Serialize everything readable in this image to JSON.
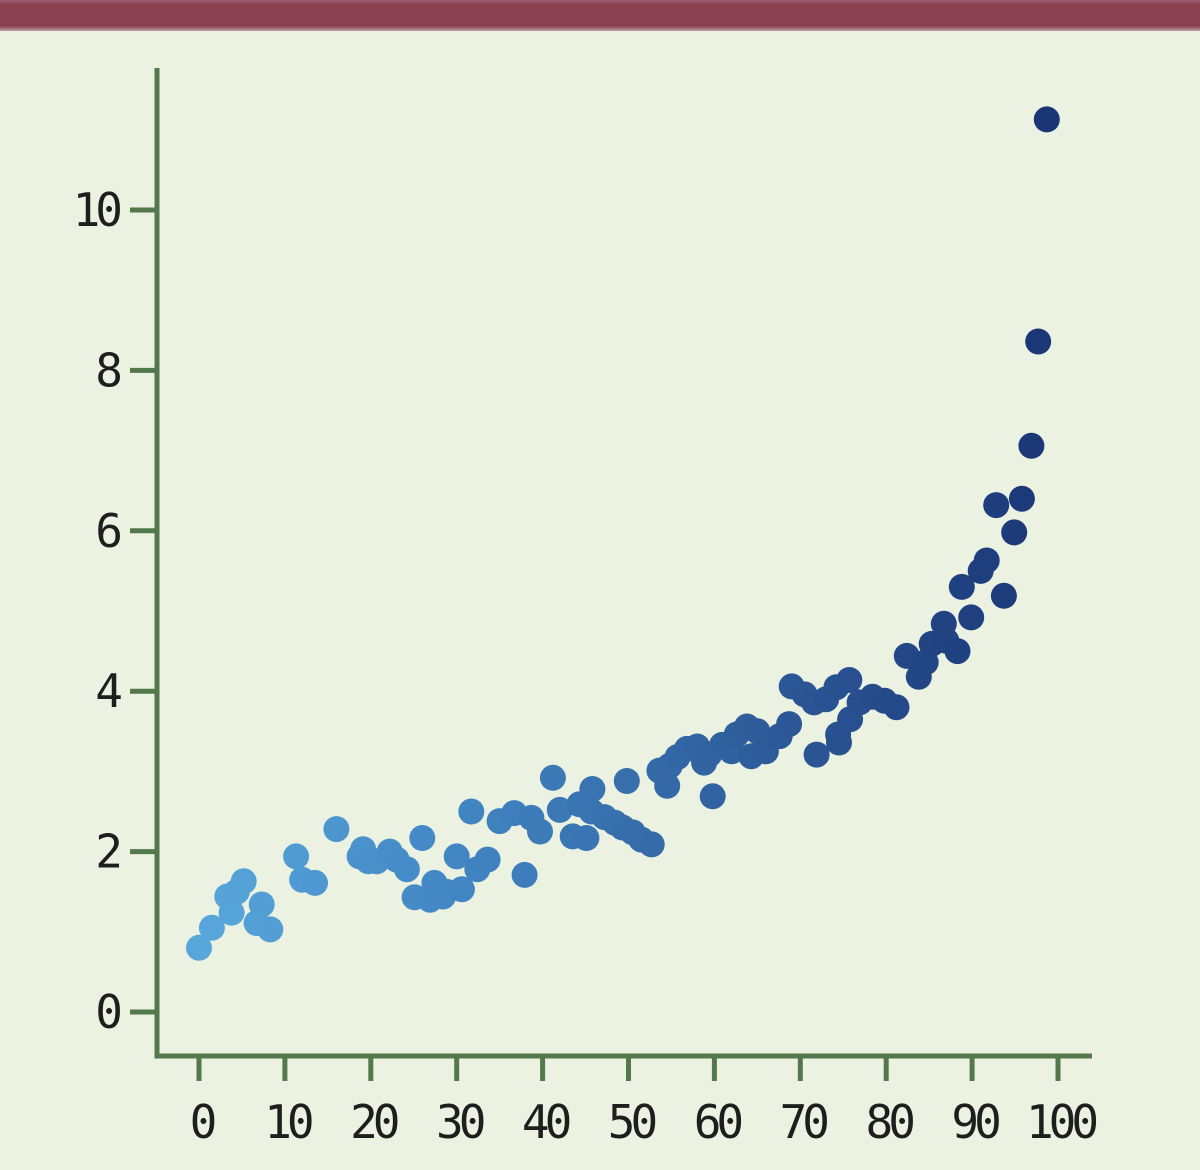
{
  "page": {
    "background_color": "#ecf2e2",
    "top_bar_color": "#8b4051"
  },
  "chart_data": {
    "type": "scatter",
    "title": "",
    "xlabel": "",
    "ylabel": "",
    "xlim": [
      -5,
      104
    ],
    "ylim": [
      -0.55,
      11.8
    ],
    "grid": false,
    "legend": null,
    "x_tick_labels": [
      "0",
      "10",
      "20",
      "30",
      "40",
      "50",
      "60",
      "70",
      "80",
      "90",
      "100"
    ],
    "x_tick_values": [
      0,
      10,
      20,
      30,
      40,
      50,
      60,
      70,
      80,
      90,
      100
    ],
    "y_tick_labels": [
      "0",
      "2",
      "4",
      "6",
      "8",
      "10"
    ],
    "y_tick_values": [
      0,
      2,
      4,
      6,
      8,
      10
    ],
    "axis_color": "#52784b",
    "tick_label_color": "#1e1e1e",
    "point_radius_px": 13,
    "point_color_stops": [
      {
        "t": 0.0,
        "c": "#58a7db"
      },
      {
        "t": 0.3,
        "c": "#4286c4"
      },
      {
        "t": 0.55,
        "c": "#3468a6"
      },
      {
        "t": 0.8,
        "c": "#254a8a"
      },
      {
        "t": 1.0,
        "c": "#1a3574"
      }
    ],
    "points": [
      [
        0.0,
        0.8
      ],
      [
        1.5,
        1.05
      ],
      [
        3.3,
        1.44
      ],
      [
        3.8,
        1.24
      ],
      [
        4.4,
        1.5
      ],
      [
        5.2,
        1.63
      ],
      [
        6.7,
        1.11
      ],
      [
        7.3,
        1.34
      ],
      [
        8.3,
        1.03
      ],
      [
        11.3,
        1.94
      ],
      [
        12.0,
        1.65
      ],
      [
        13.5,
        1.61
      ],
      [
        16.0,
        2.28
      ],
      [
        18.7,
        1.94
      ],
      [
        19.1,
        2.03
      ],
      [
        19.7,
        1.88
      ],
      [
        20.7,
        1.88
      ],
      [
        22.2,
        2.0
      ],
      [
        23.0,
        1.9
      ],
      [
        24.2,
        1.78
      ],
      [
        25.1,
        1.43
      ],
      [
        26.0,
        2.17
      ],
      [
        26.9,
        1.4
      ],
      [
        27.4,
        1.61
      ],
      [
        28.4,
        1.44
      ],
      [
        28.8,
        1.5
      ],
      [
        30.0,
        1.94
      ],
      [
        30.6,
        1.53
      ],
      [
        31.7,
        2.5
      ],
      [
        32.4,
        1.78
      ],
      [
        33.6,
        1.9
      ],
      [
        35.0,
        2.38
      ],
      [
        36.7,
        2.48
      ],
      [
        37.9,
        1.71
      ],
      [
        38.7,
        2.42
      ],
      [
        39.7,
        2.25
      ],
      [
        41.2,
        2.92
      ],
      [
        42.0,
        2.52
      ],
      [
        43.5,
        2.19
      ],
      [
        44.3,
        2.59
      ],
      [
        45.1,
        2.17
      ],
      [
        45.7,
        2.5
      ],
      [
        45.8,
        2.78
      ],
      [
        47.2,
        2.43
      ],
      [
        48.4,
        2.36
      ],
      [
        49.3,
        2.3
      ],
      [
        49.8,
        2.88
      ],
      [
        50.5,
        2.24
      ],
      [
        51.5,
        2.15
      ],
      [
        52.7,
        2.09
      ],
      [
        53.6,
        3.01
      ],
      [
        54.5,
        2.82
      ],
      [
        54.8,
        3.07
      ],
      [
        55.7,
        3.18
      ],
      [
        56.8,
        3.28
      ],
      [
        58.0,
        3.31
      ],
      [
        58.8,
        3.11
      ],
      [
        59.4,
        3.21
      ],
      [
        59.8,
        2.69
      ],
      [
        60.9,
        3.33
      ],
      [
        62.0,
        3.25
      ],
      [
        62.6,
        3.46
      ],
      [
        63.8,
        3.56
      ],
      [
        64.3,
        3.19
      ],
      [
        65.0,
        3.5
      ],
      [
        66.0,
        3.25
      ],
      [
        67.6,
        3.44
      ],
      [
        68.7,
        3.59
      ],
      [
        69.0,
        4.06
      ],
      [
        70.5,
        3.96
      ],
      [
        71.6,
        3.86
      ],
      [
        71.9,
        3.21
      ],
      [
        73.0,
        3.9
      ],
      [
        74.2,
        4.05
      ],
      [
        74.4,
        3.46
      ],
      [
        74.5,
        3.36
      ],
      [
        75.7,
        4.14
      ],
      [
        75.8,
        3.65
      ],
      [
        76.9,
        3.86
      ],
      [
        78.4,
        3.93
      ],
      [
        79.8,
        3.88
      ],
      [
        81.2,
        3.8
      ],
      [
        82.4,
        4.44
      ],
      [
        83.8,
        4.18
      ],
      [
        84.6,
        4.36
      ],
      [
        85.3,
        4.59
      ],
      [
        86.7,
        4.84
      ],
      [
        87.0,
        4.63
      ],
      [
        88.3,
        4.5
      ],
      [
        88.8,
        5.3
      ],
      [
        89.9,
        4.92
      ],
      [
        91.0,
        5.5
      ],
      [
        91.7,
        5.63
      ],
      [
        92.8,
        6.32
      ],
      [
        93.7,
        5.19
      ],
      [
        94.9,
        5.98
      ],
      [
        95.8,
        6.4
      ],
      [
        96.9,
        7.06
      ],
      [
        97.7,
        8.36
      ],
      [
        98.7,
        11.13
      ]
    ]
  }
}
